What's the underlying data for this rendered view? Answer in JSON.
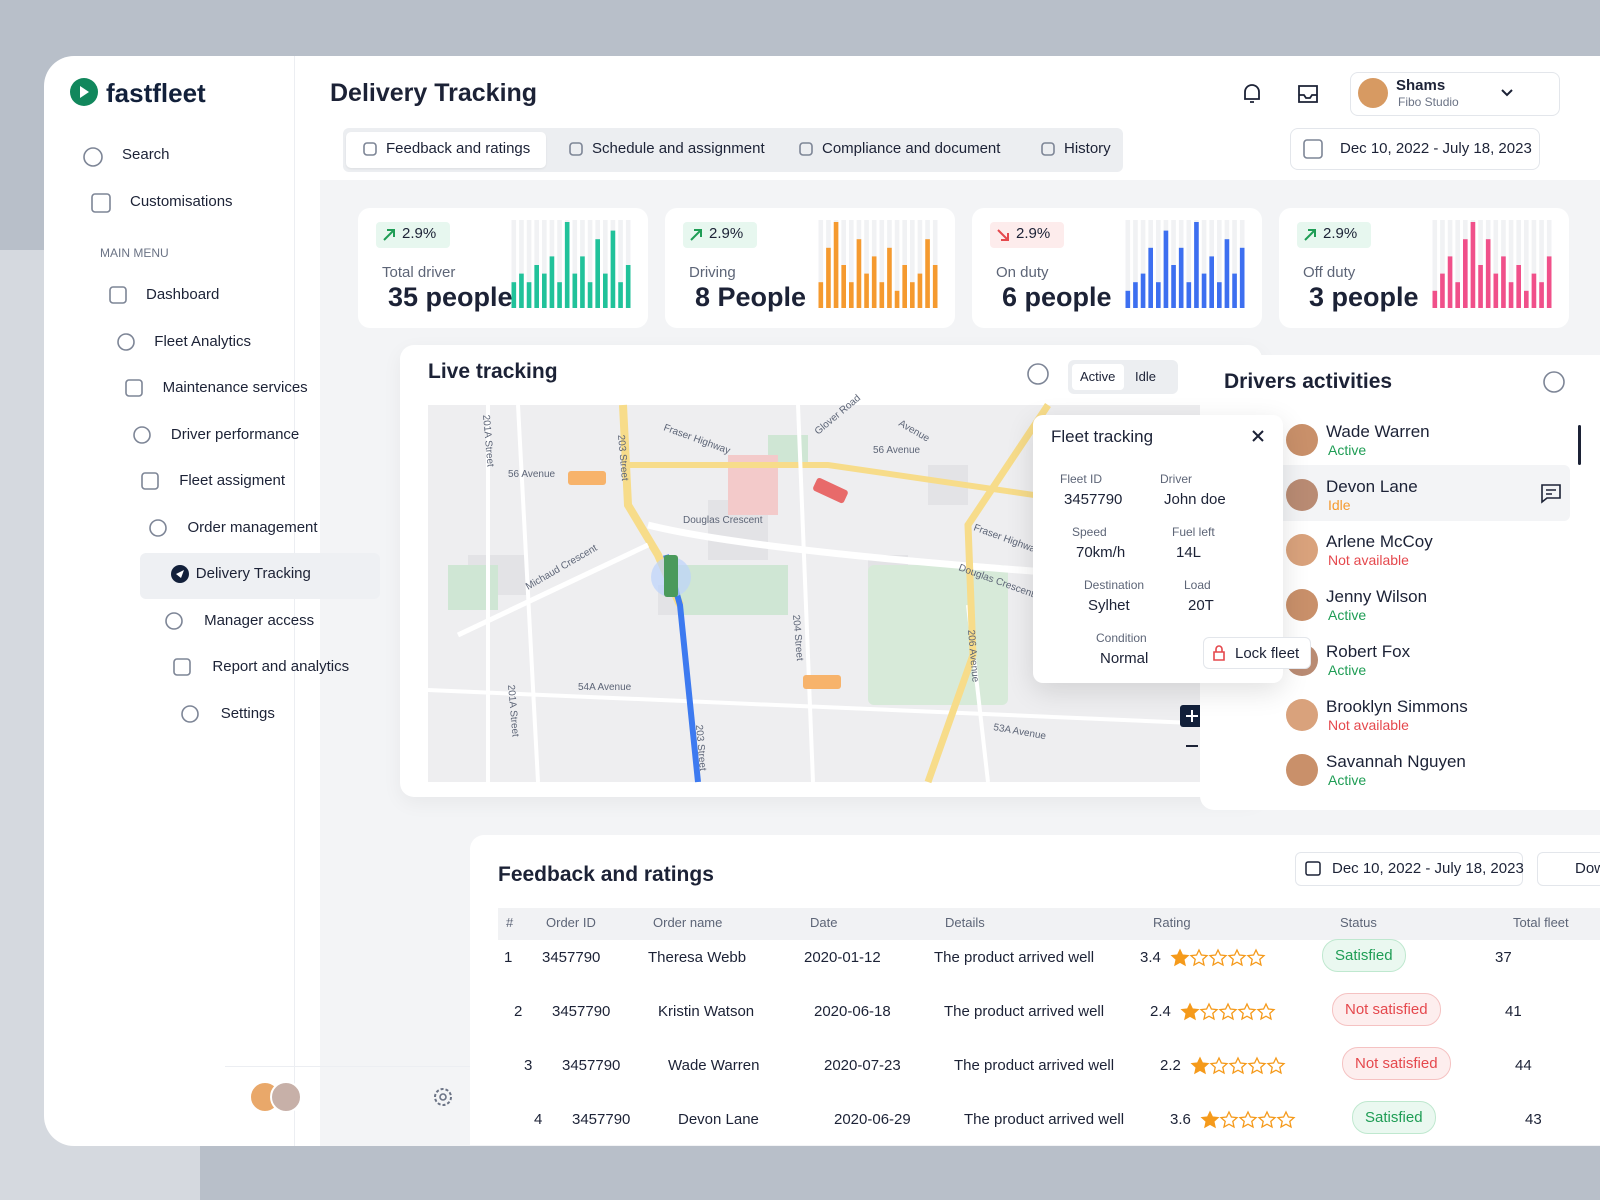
{
  "app": {
    "logo": "fastfleet"
  },
  "sidebar": {
    "search": "Search",
    "customise": "Customisations",
    "section": "MAIN MENU",
    "menu": [
      "Dashboard",
      "Fleet Analytics",
      "Maintenance services",
      "Driver performance",
      "Fleet assigment",
      "Order management",
      "Delivery Tracking",
      "Manager access",
      "Report and analytics",
      "Settings"
    ],
    "active": 6
  },
  "header": {
    "title": "Delivery Tracking",
    "user": "Shams",
    "org": "Fibo Studio",
    "date_range": "Dec 10, 2022 - July 18, 2023"
  },
  "tabs": {
    "items": [
      "Feedback and ratings",
      "Schedule and assignment",
      "Compliance and document",
      "History"
    ],
    "active": 0
  },
  "stats": [
    {
      "change": "2.9%",
      "trend": "up",
      "label": "Total driver",
      "value": "35 people",
      "color": "#21c29a",
      "bars": [
        3,
        4,
        3,
        5,
        4,
        6,
        3,
        10,
        4,
        6,
        3,
        8,
        4,
        9,
        3,
        5
      ]
    },
    {
      "change": "2.9%",
      "trend": "up",
      "label": "Driving",
      "value": "8 People",
      "color": "#f59a2f",
      "bars": [
        3,
        7,
        10,
        5,
        3,
        8,
        4,
        6,
        3,
        7,
        2,
        5,
        3,
        4,
        8,
        5
      ]
    },
    {
      "change": "2.9%",
      "trend": "down",
      "label": "On duty",
      "value": "6 people",
      "color": "#3d6ff0",
      "bars": [
        2,
        3,
        4,
        7,
        3,
        9,
        5,
        7,
        3,
        10,
        4,
        6,
        3,
        8,
        4,
        7
      ]
    },
    {
      "change": "2.9%",
      "trend": "up",
      "label": "Off duty",
      "value": "3 people",
      "color": "#f0508a",
      "bars": [
        2,
        4,
        6,
        3,
        8,
        10,
        5,
        8,
        4,
        6,
        3,
        5,
        2,
        4,
        3,
        6
      ]
    }
  ],
  "live_tracking": {
    "title": "Live tracking",
    "filters": [
      "Active",
      "Idle"
    ],
    "active_filter": 0,
    "map_labels": [
      "Fraser Highway",
      "Glover Road",
      "56 Avenue",
      "56 Avenue",
      "Douglas Crescent",
      "Douglas Crescent",
      "203 Street",
      "203 Street",
      "201A Street",
      "201A Street",
      "Michaud Crescent",
      "204 Street",
      "206 Avenue",
      "54A Avenue",
      "53A Avenue",
      "Fraser Highway",
      "Avenue"
    ]
  },
  "fleet_tracking": {
    "title": "Fleet tracking",
    "fields": [
      {
        "label": "Fleet ID",
        "value": "3457790"
      },
      {
        "label": "Driver",
        "value": "John doe"
      },
      {
        "label": "Speed",
        "value": "70km/h"
      },
      {
        "label": "Fuel left",
        "value": "14L"
      },
      {
        "label": "Destination",
        "value": "Sylhet"
      },
      {
        "label": "Load",
        "value": "20T"
      },
      {
        "label": "Condition",
        "value": "Normal"
      }
    ],
    "button": "Lock fleet"
  },
  "drivers": {
    "title": "Drivers activities",
    "items": [
      {
        "name": "Wade Warren",
        "status": "Active",
        "state": "active"
      },
      {
        "name": "Devon Lane",
        "status": "Idle",
        "state": "idle"
      },
      {
        "name": "Arlene McCoy",
        "status": "Not available",
        "state": "off"
      },
      {
        "name": "Jenny Wilson",
        "status": "Active",
        "state": "active"
      },
      {
        "name": "Robert Fox",
        "status": "Active",
        "state": "active"
      },
      {
        "name": "Brooklyn Simmons",
        "status": "Not available",
        "state": "off"
      },
      {
        "name": "Savannah Nguyen",
        "status": "Active",
        "state": "active"
      }
    ],
    "selected": 1
  },
  "feedback": {
    "title": "Feedback and ratings",
    "date_range": "Dec 10, 2022 - July 18, 2023",
    "download": "Download",
    "columns": [
      "#",
      "Order ID",
      "Order name",
      "Date",
      "Details",
      "Rating",
      "Status",
      "Total fleet"
    ],
    "rows": [
      {
        "index": 1,
        "order_id": 3457790,
        "name": "Theresa Webb",
        "date": "2020-01-12",
        "details": "The product arrived well",
        "rating": 3.4,
        "status": "Satisfied",
        "positive": true,
        "total": 37
      },
      {
        "index": 2,
        "order_id": 3457790,
        "name": "Kristin Watson",
        "date": "2020-06-18",
        "details": "The product arrived well",
        "rating": 2.4,
        "status": "Not satisfied",
        "positive": false,
        "total": 41
      },
      {
        "index": 3,
        "order_id": 3457790,
        "name": "Wade Warren",
        "date": "2020-07-23",
        "details": "The product arrived well",
        "rating": 2.2,
        "status": "Not satisfied",
        "positive": false,
        "total": 44
      },
      {
        "index": 4,
        "order_id": 3457790,
        "name": "Devon Lane",
        "date": "2020-06-29",
        "details": "The product arrived well",
        "rating": 3.6,
        "status": "Satisfied",
        "positive": true,
        "total": 43
      }
    ]
  }
}
